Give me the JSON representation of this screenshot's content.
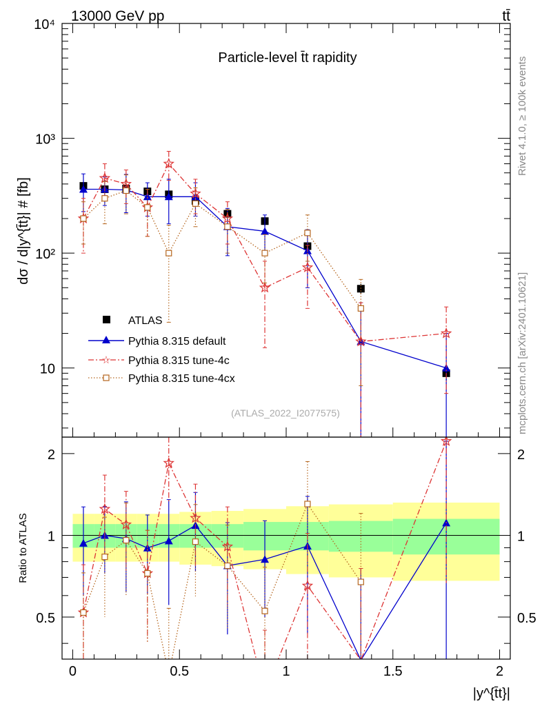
{
  "header": {
    "energy_label": "13000 GeV pp",
    "process_label": "tt̄",
    "side_label_top": "Rivet 4.1.0, ≥ 100k events",
    "side_label_bottom": "mcplots.cern.ch [arXiv:2401.10621]",
    "analysis_id": "(ATLAS_2022_I2077575)"
  },
  "chart_data": {
    "type": "scatter",
    "title": "Particle-level t̄t rapidity",
    "xlabel": "|y^{t̄t}|",
    "ylabel": "dσ / d|y^{t̄t}| # [fb]",
    "ratio_ylabel": "Ratio to ATLAS",
    "xlim": [
      -0.05,
      2.05
    ],
    "ylim": [
      2.5,
      10000
    ],
    "ratio_ylim": [
      0.35,
      2.3
    ],
    "x_ticks": [
      "0",
      "0.5",
      "1",
      "1.5",
      "2"
    ],
    "y_ticks": [
      "10",
      "10²",
      "10³",
      "10⁴"
    ],
    "ratio_ticks": [
      "0.5",
      "1",
      "2"
    ],
    "bin_edges": [
      0,
      0.1,
      0.2,
      0.3,
      0.4,
      0.5,
      0.65,
      0.8,
      1.0,
      1.2,
      1.5,
      2.0
    ],
    "x": [
      0.05,
      0.15,
      0.25,
      0.35,
      0.45,
      0.575,
      0.725,
      0.9,
      1.1,
      1.35,
      1.75
    ],
    "band_inner": [
      0.1,
      0.1,
      0.1,
      0.1,
      0.1,
      0.1,
      0.1,
      0.12,
      0.12,
      0.13,
      0.15
    ],
    "band_outer": [
      0.2,
      0.2,
      0.2,
      0.2,
      0.2,
      0.22,
      0.23,
      0.25,
      0.28,
      0.3,
      0.32
    ],
    "series": [
      {
        "name": "ATLAS",
        "style": "data",
        "color": "#000000",
        "values": [
          385,
          360,
          365,
          345,
          325,
          285,
          220,
          190,
          115,
          49,
          9
        ],
        "errors": [
          30,
          28,
          28,
          28,
          26,
          22,
          18,
          18,
          10,
          5,
          1.2
        ]
      },
      {
        "name": "Pythia 8.315 default",
        "style": "solid",
        "color": "#0000cc",
        "marker": "triangle",
        "values": [
          360,
          360,
          355,
          310,
          310,
          310,
          170,
          155,
          105,
          17,
          10
        ],
        "errors": [
          130,
          100,
          130,
          100,
          130,
          100,
          75,
          60,
          55,
          20,
          10
        ]
      },
      {
        "name": "Pythia 8.315 tune-4c",
        "style": "dashdot",
        "color": "#dd3333",
        "marker": "star",
        "values": [
          200,
          450,
          400,
          250,
          600,
          330,
          200,
          50,
          75,
          17,
          20
        ],
        "errors": [
          100,
          150,
          130,
          110,
          170,
          110,
          80,
          35,
          42,
          20,
          14
        ]
      },
      {
        "name": "Pythia 8.315 tune-4cx",
        "style": "dotted",
        "color": "#b5651d",
        "marker": "square",
        "values": [
          200,
          300,
          350,
          250,
          100,
          270,
          170,
          100,
          150,
          33,
          0
        ],
        "errors": [
          80,
          120,
          130,
          110,
          75,
          100,
          70,
          45,
          65,
          26,
          0
        ]
      }
    ]
  }
}
